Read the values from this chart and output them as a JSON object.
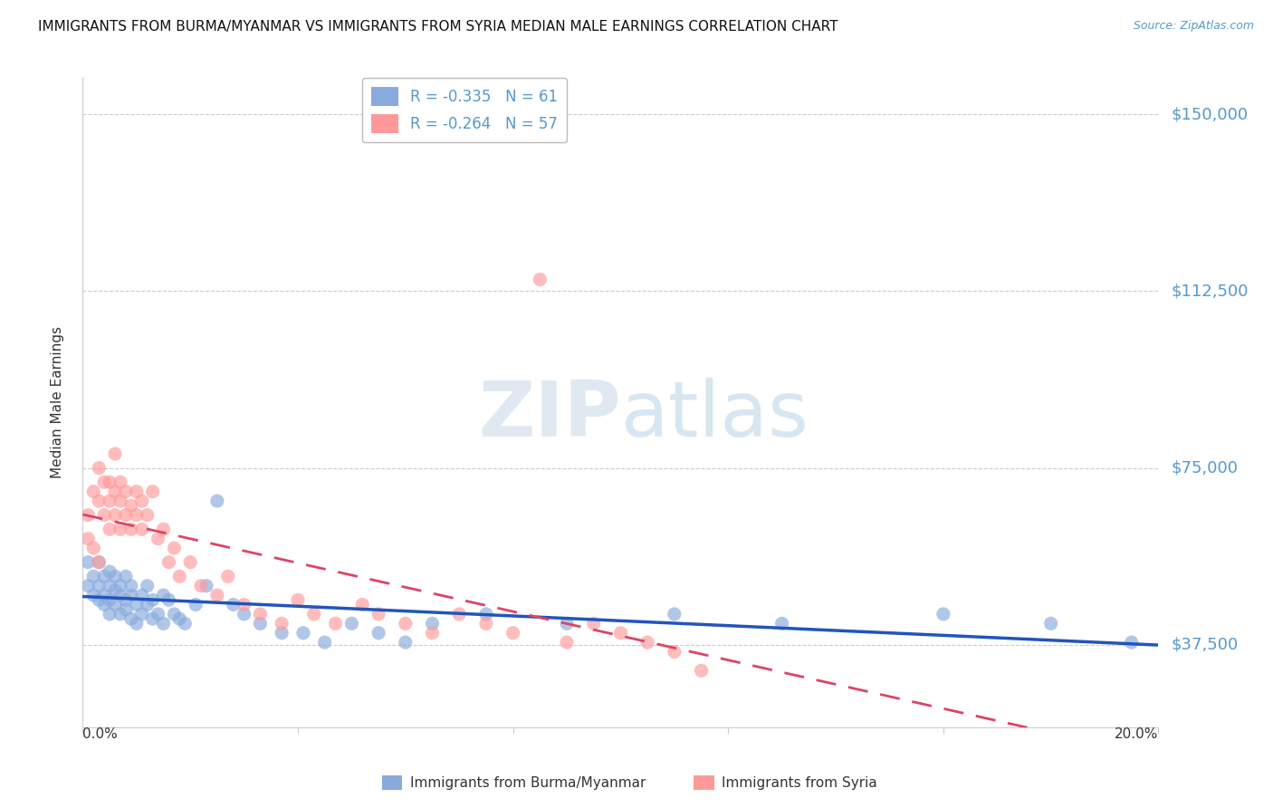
{
  "title": "IMMIGRANTS FROM BURMA/MYANMAR VS IMMIGRANTS FROM SYRIA MEDIAN MALE EARNINGS CORRELATION CHART",
  "source": "Source: ZipAtlas.com",
  "ylabel": "Median Male Earnings",
  "color_blue": "#88AADD",
  "color_pink": "#FF9999",
  "color_trendline_blue": "#2255BB",
  "color_trendline_pink": "#DD4466",
  "color_labels": "#5599CC",
  "watermark_zip_color": "#BBCCDD",
  "watermark_atlas_color": "#99BBDD",
  "legend_label1": "Immigrants from Burma/Myanmar",
  "legend_label2": "Immigrants from Syria",
  "R1": "-0.335",
  "N1": "61",
  "R2": "-0.264",
  "N2": "57",
  "xmin": 0.0,
  "xmax": 0.2,
  "ymin": 20000,
  "ymax": 158000,
  "yticks": [
    37500,
    75000,
    112500,
    150000
  ],
  "ytick_labels": [
    "$37,500",
    "$75,000",
    "$112,500",
    "$150,000"
  ],
  "blue_x": [
    0.001,
    0.001,
    0.002,
    0.002,
    0.003,
    0.003,
    0.003,
    0.004,
    0.004,
    0.004,
    0.005,
    0.005,
    0.005,
    0.005,
    0.006,
    0.006,
    0.006,
    0.007,
    0.007,
    0.007,
    0.008,
    0.008,
    0.008,
    0.009,
    0.009,
    0.009,
    0.01,
    0.01,
    0.011,
    0.011,
    0.012,
    0.012,
    0.013,
    0.013,
    0.014,
    0.015,
    0.015,
    0.016,
    0.017,
    0.018,
    0.019,
    0.021,
    0.023,
    0.025,
    0.028,
    0.03,
    0.033,
    0.037,
    0.041,
    0.045,
    0.05,
    0.055,
    0.06,
    0.065,
    0.075,
    0.09,
    0.11,
    0.13,
    0.16,
    0.18,
    0.195
  ],
  "blue_y": [
    50000,
    55000,
    48000,
    52000,
    47000,
    50000,
    55000,
    48000,
    52000,
    46000,
    50000,
    47000,
    53000,
    44000,
    49000,
    52000,
    46000,
    48000,
    50000,
    44000,
    47000,
    52000,
    45000,
    48000,
    43000,
    50000,
    46000,
    42000,
    48000,
    44000,
    50000,
    46000,
    47000,
    43000,
    44000,
    48000,
    42000,
    47000,
    44000,
    43000,
    42000,
    46000,
    50000,
    68000,
    46000,
    44000,
    42000,
    40000,
    40000,
    38000,
    42000,
    40000,
    38000,
    42000,
    44000,
    42000,
    44000,
    42000,
    44000,
    42000,
    38000
  ],
  "pink_x": [
    0.001,
    0.001,
    0.002,
    0.002,
    0.003,
    0.003,
    0.003,
    0.004,
    0.004,
    0.005,
    0.005,
    0.005,
    0.006,
    0.006,
    0.006,
    0.007,
    0.007,
    0.007,
    0.008,
    0.008,
    0.009,
    0.009,
    0.01,
    0.01,
    0.011,
    0.011,
    0.012,
    0.013,
    0.014,
    0.015,
    0.016,
    0.017,
    0.018,
    0.02,
    0.022,
    0.025,
    0.027,
    0.03,
    0.033,
    0.037,
    0.04,
    0.043,
    0.047,
    0.052,
    0.055,
    0.06,
    0.065,
    0.07,
    0.075,
    0.08,
    0.085,
    0.09,
    0.095,
    0.1,
    0.105,
    0.11,
    0.115
  ],
  "pink_y": [
    60000,
    65000,
    70000,
    58000,
    75000,
    68000,
    55000,
    72000,
    65000,
    68000,
    62000,
    72000,
    70000,
    65000,
    78000,
    68000,
    62000,
    72000,
    65000,
    70000,
    62000,
    67000,
    65000,
    70000,
    68000,
    62000,
    65000,
    70000,
    60000,
    62000,
    55000,
    58000,
    52000,
    55000,
    50000,
    48000,
    52000,
    46000,
    44000,
    42000,
    47000,
    44000,
    42000,
    46000,
    44000,
    42000,
    40000,
    44000,
    42000,
    40000,
    115000,
    38000,
    42000,
    40000,
    38000,
    36000,
    32000
  ]
}
